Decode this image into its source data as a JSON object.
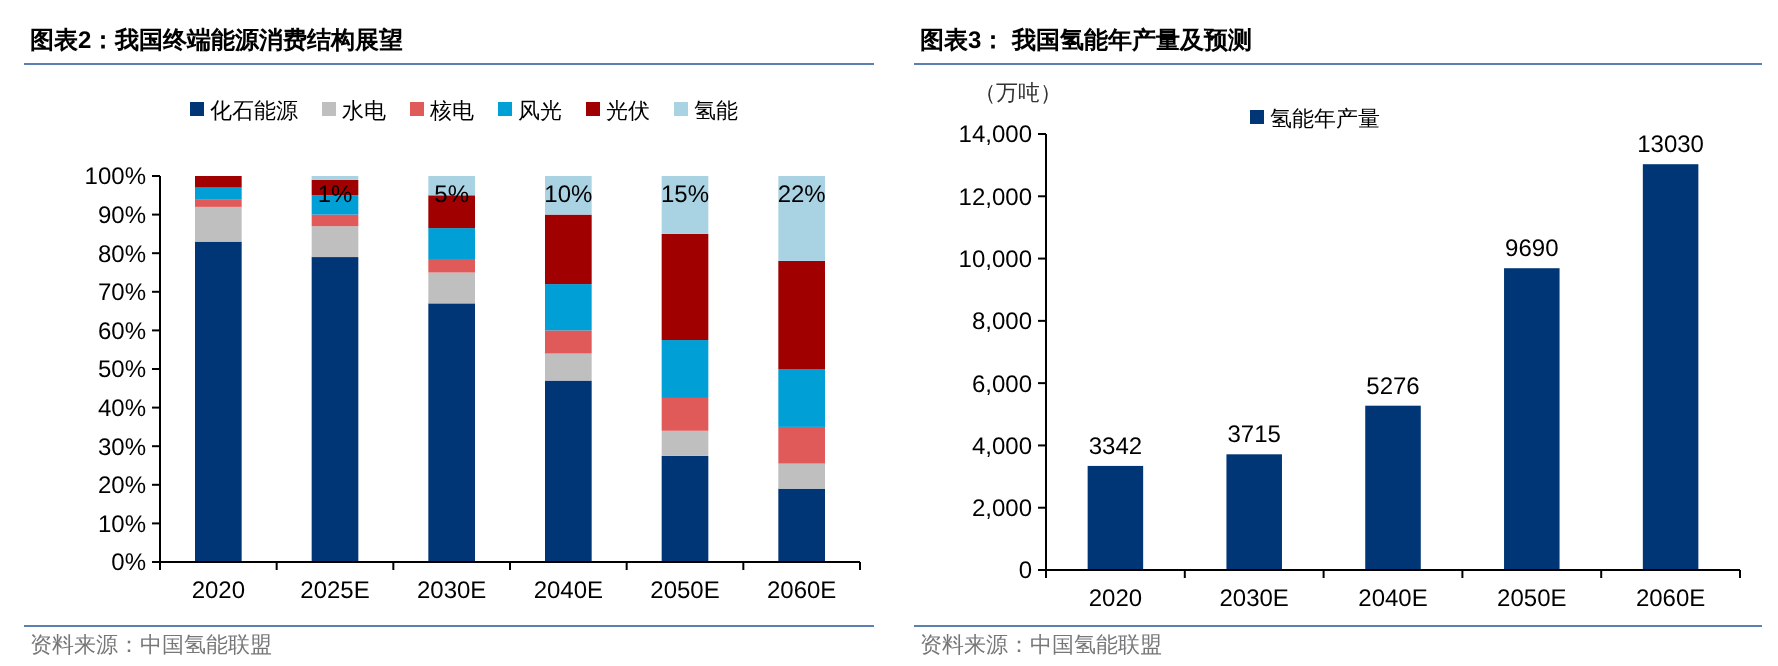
{
  "chart_data": [
    {
      "type": "bar",
      "title": "图表2：我国终端能源消费结构展望",
      "stacked": true,
      "categories": [
        "2020",
        "2025E",
        "2030E",
        "2040E",
        "2050E",
        "2060E"
      ],
      "series": [
        {
          "name": "化石能源",
          "color": "#003676",
          "values": [
            83,
            79,
            67,
            47,
            27.5,
            19
          ]
        },
        {
          "name": "水电",
          "color": "#bfbfbf",
          "values": [
            9,
            8,
            8,
            7,
            6.5,
            6.5
          ]
        },
        {
          "name": "核电",
          "color": "#e05a5a",
          "values": [
            2,
            3,
            3.5,
            6,
            8.5,
            9.5
          ]
        },
        {
          "name": "风光",
          "color": "#00a0d6",
          "values": [
            3,
            5,
            8,
            12,
            15,
            15
          ]
        },
        {
          "name": "光伏",
          "color": "#a00000",
          "values": [
            3,
            4,
            8.5,
            18,
            27.5,
            28
          ]
        },
        {
          "name": "氢能",
          "color": "#a9d3e3",
          "values": [
            0,
            1,
            5,
            10,
            15,
            22
          ],
          "value_labels": [
            null,
            "1%",
            "5%",
            "10%",
            "15%",
            "22%"
          ]
        }
      ],
      "ylim": [
        0,
        100
      ],
      "yticks": [
        {
          "value": 0,
          "label": "0%"
        },
        {
          "value": 10,
          "label": "10%"
        },
        {
          "value": 20,
          "label": "20%"
        },
        {
          "value": 30,
          "label": "30%"
        },
        {
          "value": 40,
          "label": "40%"
        },
        {
          "value": 50,
          "label": "50%"
        },
        {
          "value": 60,
          "label": "60%"
        },
        {
          "value": 70,
          "label": "70%"
        },
        {
          "value": 80,
          "label": "80%"
        },
        {
          "value": 90,
          "label": "90%"
        },
        {
          "value": 100,
          "label": "100%"
        }
      ],
      "grid": false,
      "legend": "top",
      "annotations": [
        "资料来源：中国氢能联盟"
      ]
    },
    {
      "type": "bar",
      "title": "图表3：  我国氢能年产量及预测",
      "ylabel": "（万吨）",
      "categories": [
        "2020",
        "2030E",
        "2040E",
        "2050E",
        "2060E"
      ],
      "series": [
        {
          "name": "氢能年产量",
          "color": "#003676",
          "values": [
            3342,
            3715,
            5276,
            9690,
            13030
          ]
        }
      ],
      "ylim": [
        0,
        14000
      ],
      "yticks": [
        {
          "value": 0,
          "label": "0"
        },
        {
          "value": 2000,
          "label": "2,000"
        },
        {
          "value": 4000,
          "label": "4,000"
        },
        {
          "value": 6000,
          "label": "6,000"
        },
        {
          "value": 8000,
          "label": "8,000"
        },
        {
          "value": 10000,
          "label": "10,000"
        },
        {
          "value": 12000,
          "label": "12,000"
        },
        {
          "value": 14000,
          "label": "14,000"
        }
      ],
      "data_labels": true,
      "grid": false,
      "legend": "top",
      "annotations": [
        "资料来源：中国氢能联盟"
      ]
    }
  ]
}
